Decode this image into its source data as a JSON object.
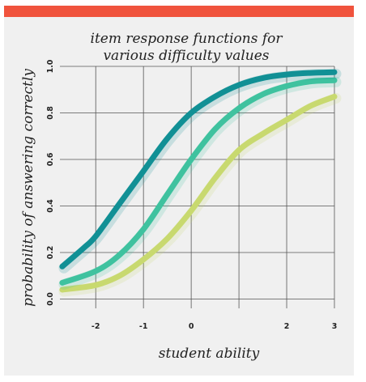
{
  "colors": {
    "top_bar": "#f0533d",
    "panel_bg": "#f0f0f0",
    "grid": "#555555"
  },
  "chart_data": {
    "type": "line",
    "title_lines": [
      "item response functions for",
      "various difficulty values"
    ],
    "xlabel": "student ability",
    "ylabel": "probability of answering correctly",
    "xlim": [
      -2.75,
      3
    ],
    "ylim": [
      -0.04,
      1.0
    ],
    "x_ticks": [
      -2,
      -1,
      0,
      2,
      3
    ],
    "x_tick_labels": [
      "-2",
      "-1",
      "0",
      "2",
      "3"
    ],
    "x_grid": [
      -2,
      -1,
      0,
      1,
      2,
      3
    ],
    "y_ticks": [
      0.0,
      0.2,
      0.4,
      0.6,
      0.8,
      1.0
    ],
    "y_tick_labels": [
      "0.0",
      "0.2",
      "0.4",
      "0.6",
      "0.8",
      "1.0"
    ],
    "grid": true,
    "series": [
      {
        "color": "#119095",
        "x": [
          -2.7,
          -2.25,
          -2.0,
          -1.5,
          -1.0,
          -0.5,
          0.0,
          0.5,
          1.0,
          1.5,
          2.0,
          2.5,
          3.0
        ],
        "y": [
          0.14,
          0.22,
          0.27,
          0.41,
          0.55,
          0.69,
          0.8,
          0.87,
          0.92,
          0.95,
          0.965,
          0.972,
          0.975
        ]
      },
      {
        "color": "#3fc29f",
        "x": [
          -2.7,
          -2.0,
          -1.5,
          -1.0,
          -0.5,
          0.0,
          0.5,
          1.0,
          1.5,
          2.0,
          2.5,
          3.0
        ],
        "y": [
          0.07,
          0.12,
          0.19,
          0.3,
          0.45,
          0.6,
          0.73,
          0.82,
          0.88,
          0.915,
          0.935,
          0.94
        ]
      },
      {
        "color": "#c8d96f",
        "x": [
          -2.7,
          -2.0,
          -1.5,
          -1.0,
          -0.5,
          0.0,
          0.5,
          1.0,
          1.5,
          2.0,
          2.5,
          3.0
        ],
        "y": [
          0.04,
          0.06,
          0.1,
          0.17,
          0.26,
          0.38,
          0.52,
          0.64,
          0.71,
          0.77,
          0.83,
          0.87
        ]
      }
    ]
  }
}
